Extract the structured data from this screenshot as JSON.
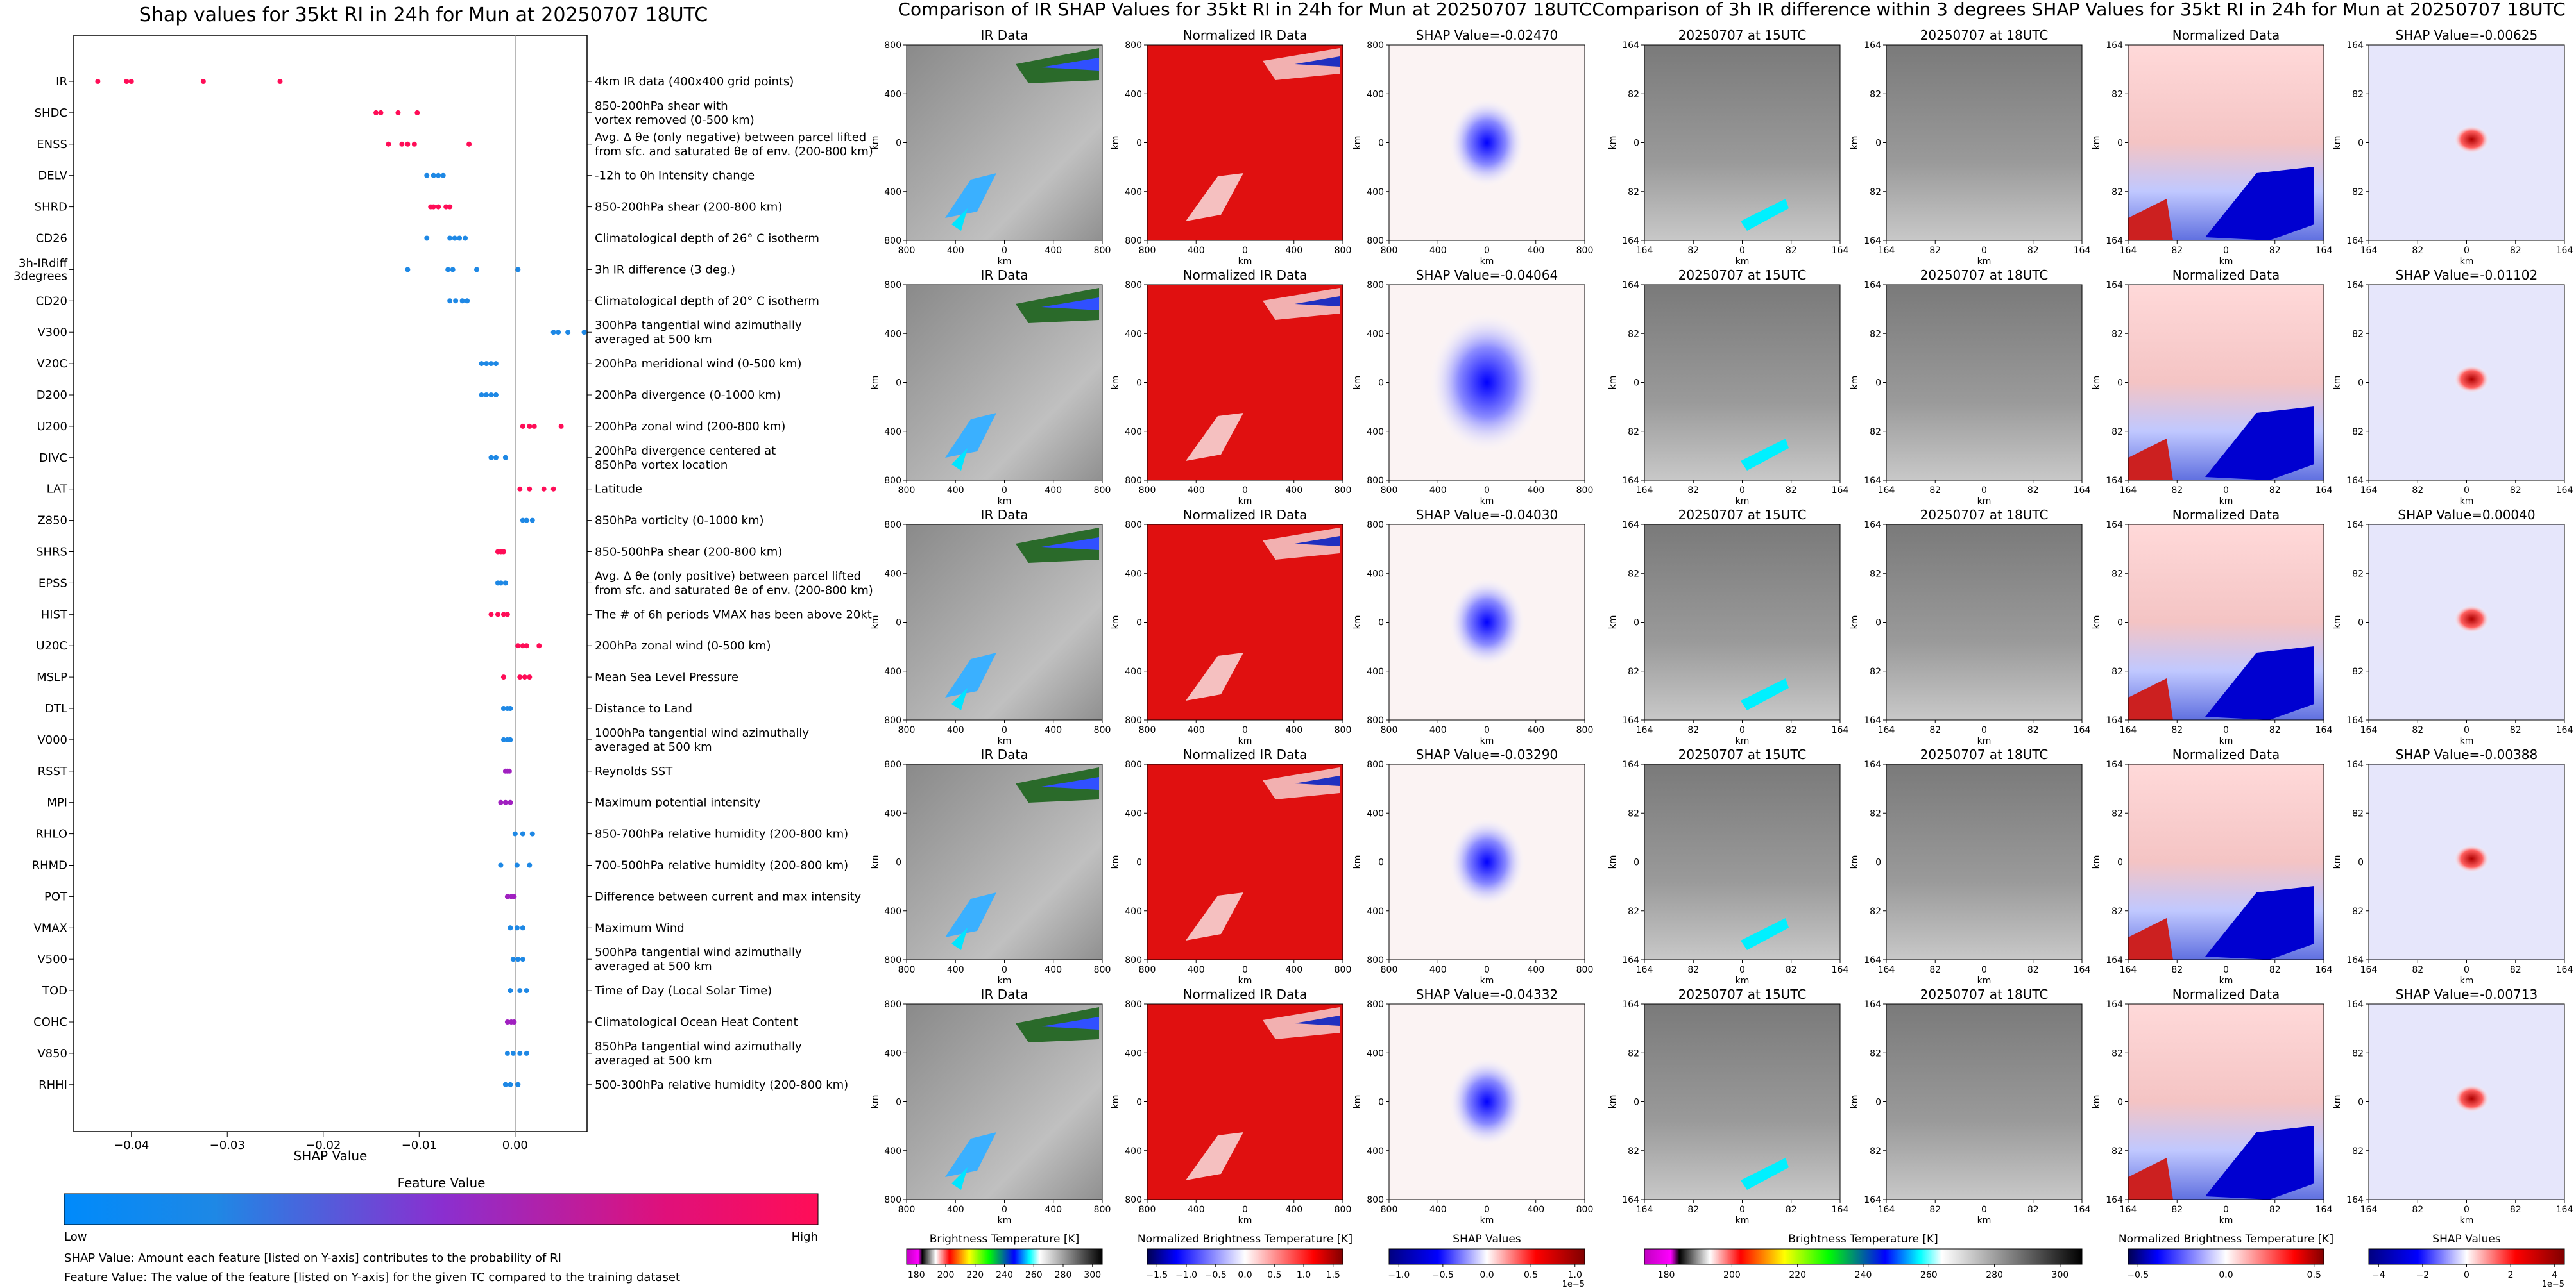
{
  "summary_panel": {
    "title": "Shap values for 35kt RI in 24h for Mun at 20250707 18UTC",
    "xlabel": "SHAP Value",
    "x_ticks": [
      "−0.04",
      "−0.03",
      "−0.02",
      "−0.01",
      "0.00"
    ],
    "colorbar_title": "Feature Value",
    "colorbar_low": "Low",
    "colorbar_high": "High",
    "note1": "SHAP Value: Amount each feature [listed on Y-axis] contributes to the probability of RI",
    "note2": "Feature Value: The value of the feature [listed on Y-axis] for the given TC compared to the training dataset"
  },
  "ir_section": {
    "title": "Comparison of IR SHAP Values for 35kt RI in 24h for Mun at 20250707 18UTC",
    "col_titles": [
      "IR Data",
      "Normalized IR Data"
    ],
    "shap_titles": [
      "SHAP Value=-0.02470",
      "SHAP Value=-0.04064",
      "SHAP Value=-0.04030",
      "SHAP Value=-0.03290",
      "SHAP Value=-0.04332"
    ],
    "axis_label": "km",
    "ticks": [
      "800",
      "400",
      "0",
      "400",
      "800"
    ],
    "cb_titles": [
      "Brightness Temperature [K]",
      "Normalized Brightness Temperature [K]",
      "SHAP Values"
    ],
    "cb_ticks": [
      [
        "180",
        "200",
        "220",
        "240",
        "260",
        "280",
        "300"
      ],
      [
        "−1.5",
        "−1.0",
        "−0.5",
        "0.0",
        "0.5",
        "1.0",
        "1.5"
      ],
      [
        "−1.0",
        "−0.5",
        "0.0",
        "0.5",
        "1.0"
      ]
    ],
    "cb_exponent": "1e−5"
  },
  "diff_section": {
    "title": "Comparison of 3h IR difference within 3 degrees SHAP Values for 35kt RI in 24h for Mun at 20250707 18UTC",
    "col_titles": [
      "20250707 at 15UTC",
      "20250707 at 18UTC",
      "Normalized Data"
    ],
    "shap_titles": [
      "SHAP Value=-0.00625",
      "SHAP Value=-0.01102",
      "SHAP Value=0.00040",
      "SHAP Value=-0.00388",
      "SHAP Value=-0.00713"
    ],
    "axis_label": "km",
    "ticks": [
      "164",
      "82",
      "0",
      "82",
      "164"
    ],
    "cb_titles": [
      "Brightness Temperature [K]",
      "Normalized Brightness Temperature [K]",
      "SHAP Values"
    ],
    "cb_ticks": [
      [
        "180",
        "200",
        "220",
        "240",
        "260",
        "280",
        "300"
      ],
      [
        "−0.5",
        "0.0",
        "0.5"
      ],
      [
        "−4",
        "−2",
        "0",
        "2",
        "4"
      ]
    ],
    "cb_exponent": "1e−5"
  },
  "colors": {
    "low": "#1e88e5",
    "high": "#ff0d57",
    "mid": "#a020c0"
  },
  "chart_data": {
    "type": "scatter",
    "title": "Shap values for 35kt RI in 24h for Mun at 20250707 18UTC",
    "xlabel": "SHAP Value",
    "xlim": [
      -0.046,
      0.0075
    ],
    "features": [
      {
        "code": "IR",
        "desc": [
          "4km IR data (400x400 grid points)"
        ],
        "color": "high",
        "values": [
          -0.0435,
          -0.0405,
          -0.04,
          -0.0325,
          -0.0245
        ]
      },
      {
        "code": "SHDC",
        "desc": [
          "850-200hPa shear with",
          "vortex removed (0-500 km)"
        ],
        "color": "high",
        "values": [
          -0.0145,
          -0.014,
          -0.0122,
          -0.0102
        ]
      },
      {
        "code": "ENSS",
        "desc": [
          "Avg. Δ θe (only negative) between parcel lifted",
          "from sfc. and saturated θe of env. (200-800 km)"
        ],
        "color": "high",
        "values": [
          -0.0132,
          -0.0118,
          -0.0112,
          -0.0105,
          -0.0048
        ]
      },
      {
        "code": "DELV",
        "desc": [
          "-12h to 0h Intensity change"
        ],
        "color": "low",
        "values": [
          -0.0092,
          -0.0085,
          -0.008,
          -0.0075
        ]
      },
      {
        "code": "SHRD",
        "desc": [
          "850-200hPa shear (200-800 km)"
        ],
        "color": "high",
        "values": [
          -0.0088,
          -0.0085,
          -0.008,
          -0.0072,
          -0.0068
        ]
      },
      {
        "code": "CD26",
        "desc": [
          "Climatological depth of 26° C isotherm"
        ],
        "color": "low",
        "values": [
          -0.0092,
          -0.0068,
          -0.0063,
          -0.0058,
          -0.0052
        ]
      },
      {
        "code": "3h-IRdiff|3degrees",
        "desc": [
          "3h IR difference (3 deg.)"
        ],
        "color": "low",
        "values": [
          -0.0112,
          -0.007,
          -0.0065,
          -0.004,
          0.0003
        ]
      },
      {
        "code": "CD20",
        "desc": [
          "Climatological depth of 20° C isotherm"
        ],
        "color": "low",
        "values": [
          -0.0068,
          -0.0062,
          -0.0055,
          -0.005
        ]
      },
      {
        "code": "V300",
        "desc": [
          "300hPa tangential wind azimuthally",
          "averaged at 500 km"
        ],
        "color": "low",
        "values": [
          0.004,
          0.0045,
          0.0055,
          0.0072
        ]
      },
      {
        "code": "V20C",
        "desc": [
          "200hPa meridional wind (0-500 km)"
        ],
        "color": "low",
        "values": [
          -0.0035,
          -0.003,
          -0.0025,
          -0.002
        ]
      },
      {
        "code": "D200",
        "desc": [
          "200hPa divergence (0-1000 km)"
        ],
        "color": "low",
        "values": [
          -0.0035,
          -0.003,
          -0.0025,
          -0.002
        ]
      },
      {
        "code": "U200",
        "desc": [
          "200hPa zonal wind (200-800 km)"
        ],
        "color": "high",
        "values": [
          0.0008,
          0.0015,
          0.002,
          0.0048
        ]
      },
      {
        "code": "DIVC",
        "desc": [
          "200hPa divergence centered at",
          "850hPa vortex location"
        ],
        "color": "low",
        "values": [
          -0.0025,
          -0.002,
          -0.001
        ]
      },
      {
        "code": "LAT",
        "desc": [
          "Latitude"
        ],
        "color": "high",
        "values": [
          0.0005,
          0.0015,
          0.003,
          0.004
        ]
      },
      {
        "code": "Z850",
        "desc": [
          "850hPa vorticity (0-1000 km)"
        ],
        "color": "low",
        "values": [
          0.0008,
          0.0012,
          0.0018
        ]
      },
      {
        "code": "SHRS",
        "desc": [
          "850-500hPa shear (200-800 km)"
        ],
        "color": "high",
        "values": [
          -0.0018,
          -0.0015,
          -0.0012
        ]
      },
      {
        "code": "EPSS",
        "desc": [
          "Avg. Δ θe (only positive) between parcel lifted",
          "from sfc. and saturated θe of env. (200-800 km)"
        ],
        "color": "low",
        "values": [
          -0.0018,
          -0.0015,
          -0.001
        ]
      },
      {
        "code": "HIST",
        "desc": [
          "The # of 6h periods VMAX has been above 20kt"
        ],
        "color": "high",
        "values": [
          -0.0025,
          -0.0018,
          -0.0012,
          -0.0008
        ]
      },
      {
        "code": "U20C",
        "desc": [
          "200hPa zonal wind (0-500 km)"
        ],
        "color": "high",
        "values": [
          0.0003,
          0.0008,
          0.0012,
          0.0025
        ]
      },
      {
        "code": "MSLP",
        "desc": [
          "Mean Sea Level Pressure"
        ],
        "color": "high",
        "values": [
          -0.0012,
          0.0005,
          0.001,
          0.0015
        ]
      },
      {
        "code": "DTL",
        "desc": [
          "Distance to Land"
        ],
        "color": "low",
        "values": [
          -0.0012,
          -0.0008,
          -0.0005
        ]
      },
      {
        "code": "V000",
        "desc": [
          "1000hPa tangential wind azimuthally",
          "averaged at 500 km"
        ],
        "color": "low",
        "values": [
          -0.0012,
          -0.0008,
          -0.0005
        ]
      },
      {
        "code": "RSST",
        "desc": [
          "Reynolds SST"
        ],
        "color": "mid",
        "values": [
          -0.001,
          -0.0008,
          -0.0006
        ]
      },
      {
        "code": "MPI",
        "desc": [
          "Maximum potential intensity"
        ],
        "color": "mid",
        "values": [
          -0.0015,
          -0.001,
          -0.0005
        ]
      },
      {
        "code": "RHLO",
        "desc": [
          "850-700hPa relative humidity (200-800 km)"
        ],
        "color": "low",
        "values": [
          0.0,
          0.0008,
          0.0018
        ]
      },
      {
        "code": "RHMD",
        "desc": [
          "700-500hPa relative humidity (200-800 km)"
        ],
        "color": "low",
        "values": [
          -0.0015,
          0.0002,
          0.0015
        ]
      },
      {
        "code": "POT",
        "desc": [
          "Difference between current and max intensity"
        ],
        "color": "mid",
        "values": [
          -0.0008,
          -0.0004,
          -0.0001
        ]
      },
      {
        "code": "VMAX",
        "desc": [
          "Maximum Wind"
        ],
        "color": "low",
        "values": [
          -0.0005,
          0.0002,
          0.0008
        ]
      },
      {
        "code": "V500",
        "desc": [
          "500hPa tangential wind azimuthally",
          "averaged at 500 km"
        ],
        "color": "low",
        "values": [
          -0.0002,
          0.0003,
          0.0008
        ]
      },
      {
        "code": "TOD",
        "desc": [
          "Time of Day (Local Solar Time)"
        ],
        "color": "low",
        "values": [
          -0.0005,
          0.0005,
          0.0012
        ]
      },
      {
        "code": "COHC",
        "desc": [
          "Climatological Ocean Heat Content"
        ],
        "color": "mid",
        "values": [
          -0.0008,
          -0.0004,
          -0.0001
        ]
      },
      {
        "code": "V850",
        "desc": [
          "850hPa tangential wind azimuthally",
          "averaged at 500 km"
        ],
        "color": "low",
        "values": [
          -0.0008,
          -0.0002,
          0.0005,
          0.0012
        ]
      },
      {
        "code": "RHHI",
        "desc": [
          "500-300hPa relative humidity (200-800 km)"
        ],
        "color": "low",
        "values": [
          -0.001,
          -0.0005,
          0.0003
        ]
      }
    ]
  }
}
